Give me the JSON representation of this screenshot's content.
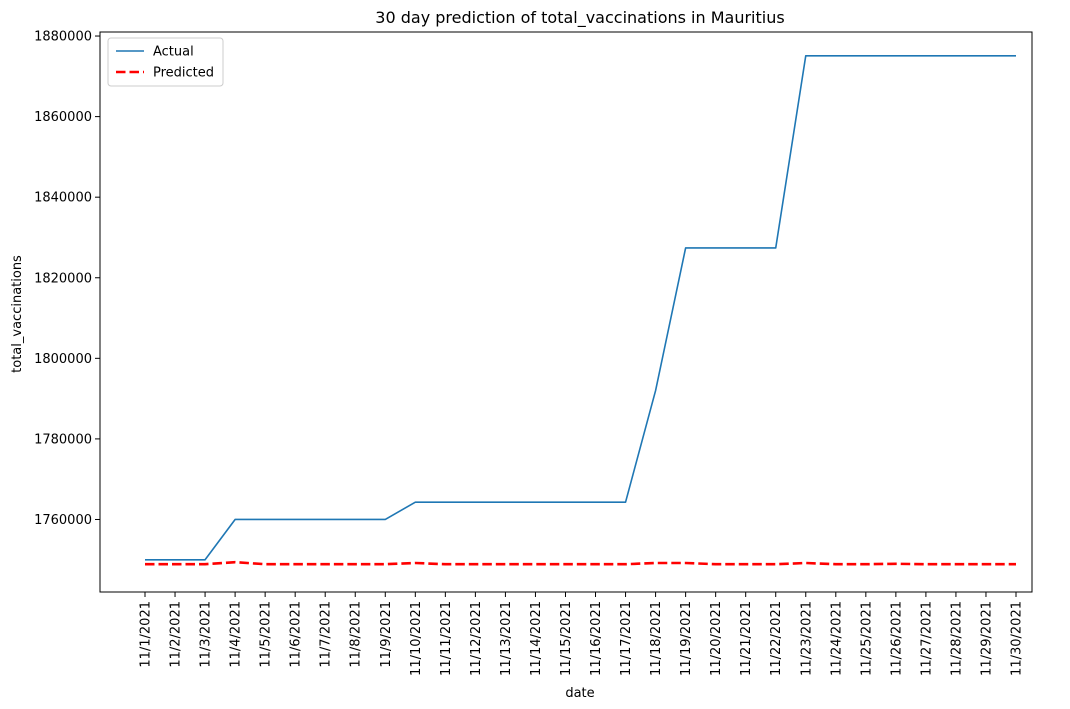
{
  "chart_data": {
    "type": "line",
    "title": "30 day prediction of total_vaccinations in Mauritius",
    "xlabel": "date",
    "ylabel": "total_vaccinations",
    "categories": [
      "11/1/2021",
      "11/2/2021",
      "11/3/2021",
      "11/4/2021",
      "11/5/2021",
      "11/6/2021",
      "11/7/2021",
      "11/8/2021",
      "11/9/2021",
      "11/10/2021",
      "11/11/2021",
      "11/12/2021",
      "11/13/2021",
      "11/14/2021",
      "11/15/2021",
      "11/16/2021",
      "11/17/2021",
      "11/18/2021",
      "11/19/2021",
      "11/20/2021",
      "11/21/2021",
      "11/22/2021",
      "11/23/2021",
      "11/24/2021",
      "11/25/2021",
      "11/26/2021",
      "11/27/2021",
      "11/28/2021",
      "11/29/2021",
      "11/30/2021"
    ],
    "yticks": [
      1760000,
      1780000,
      1800000,
      1820000,
      1840000,
      1860000,
      1880000
    ],
    "ylim": [
      1742000,
      1881000
    ],
    "grid": false,
    "legend_position": "top-left",
    "series": [
      {
        "name": "Actual",
        "color": "#1f77b4",
        "style": "solid",
        "values": [
          1750000,
          1750000,
          1750000,
          1760000,
          1760000,
          1760000,
          1760000,
          1760000,
          1760000,
          1764300,
          1764300,
          1764300,
          1764300,
          1764300,
          1764300,
          1764300,
          1764300,
          1792000,
          1827400,
          1827400,
          1827400,
          1827400,
          1875100,
          1875100,
          1875100,
          1875100,
          1875100,
          1875100,
          1875100,
          1875100
        ]
      },
      {
        "name": "Predicted",
        "color": "#ff0000",
        "style": "dashed",
        "values": [
          1748900,
          1748900,
          1748900,
          1749400,
          1748900,
          1748900,
          1748900,
          1748900,
          1748900,
          1749200,
          1748900,
          1748900,
          1748900,
          1748900,
          1748900,
          1748900,
          1748900,
          1749200,
          1749200,
          1748900,
          1748900,
          1748900,
          1749200,
          1748900,
          1748900,
          1749000,
          1748900,
          1748900,
          1748900,
          1748900
        ]
      }
    ]
  }
}
